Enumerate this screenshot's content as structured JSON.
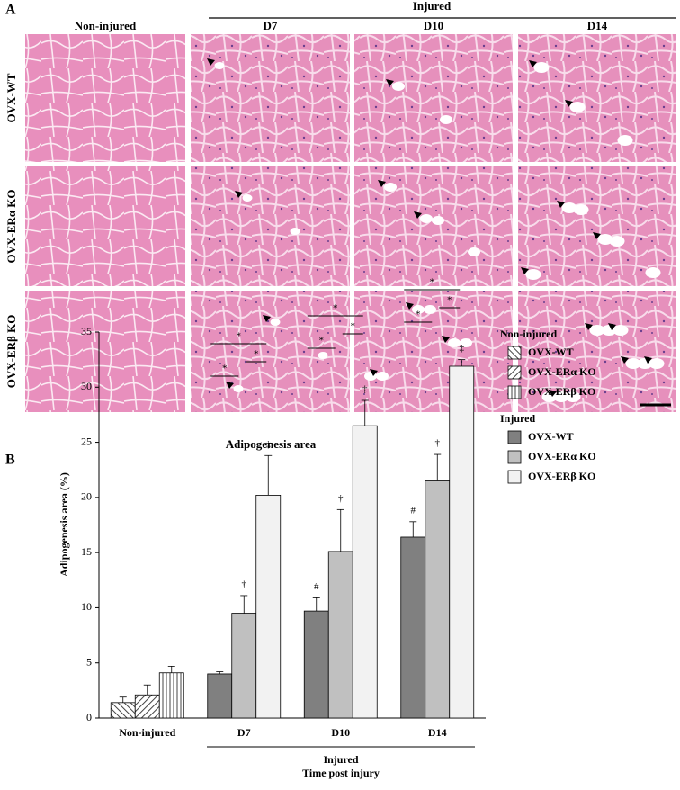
{
  "panel_a": {
    "label": "A",
    "group_label": "Injured",
    "columns": [
      "Non-injured",
      "D7",
      "D10",
      "D14"
    ],
    "rows": [
      "OVX-WT",
      "OVX-ERα KO",
      "OVX-ERβ KO"
    ]
  },
  "panel_b_label": "B",
  "chart_data": {
    "type": "bar",
    "title": "Adipogenesis area",
    "ylabel": "Adipogenesis area (%)",
    "xlabel": "Time post injury",
    "group_label": "Injured",
    "categories": [
      "Non-injured",
      "D7",
      "D10",
      "D14"
    ],
    "ylim": [
      0,
      35
    ],
    "yticks": [
      0,
      5,
      10,
      15,
      20,
      25,
      30,
      35
    ],
    "legend_groups": [
      "Non-injured",
      "Injured"
    ],
    "series": [
      {
        "name": "OVX-WT",
        "group": 0,
        "color": "#ffffff",
        "hatch": "\\",
        "values": [
          1.4,
          null,
          null,
          null
        ],
        "errors": [
          0.5,
          null,
          null,
          null
        ],
        "markers": [
          null,
          null,
          null,
          null
        ]
      },
      {
        "name": "OVX-ERα KO",
        "group": 0,
        "color": "#ffffff",
        "hatch": "/",
        "values": [
          2.1,
          null,
          null,
          null
        ],
        "errors": [
          0.9,
          null,
          null,
          null
        ],
        "markers": [
          null,
          null,
          null,
          null
        ]
      },
      {
        "name": "OVX-ERβ KO",
        "group": 0,
        "color": "#ffffff",
        "hatch": "|",
        "values": [
          4.1,
          null,
          null,
          null
        ],
        "errors": [
          0.6,
          null,
          null,
          null
        ],
        "markers": [
          null,
          null,
          null,
          null
        ]
      },
      {
        "name": "OVX-WT",
        "group": 1,
        "color": "#808080",
        "values": [
          null,
          4.0,
          9.7,
          16.4
        ],
        "errors": [
          null,
          0.2,
          1.2,
          1.4
        ],
        "markers": [
          null,
          null,
          "#",
          "#"
        ]
      },
      {
        "name": "OVX-ERα KO",
        "group": 1,
        "color": "#c0c0c0",
        "values": [
          null,
          9.5,
          15.1,
          21.5
        ],
        "errors": [
          null,
          1.6,
          3.8,
          2.4
        ],
        "markers": [
          null,
          "†",
          "†",
          "†"
        ]
      },
      {
        "name": "OVX-ERβ KO",
        "group": 1,
        "color": "#f2f2f2",
        "values": [
          null,
          20.2,
          26.5,
          31.9
        ],
        "errors": [
          null,
          3.6,
          2.3,
          0.6
        ],
        "markers": [
          null,
          "‡",
          "‡",
          "‡"
        ]
      }
    ],
    "brackets": [
      null,
      [
        "*",
        "*",
        "*"
      ],
      [
        "*",
        "*",
        "*"
      ],
      [
        "*",
        "*",
        "*"
      ]
    ]
  }
}
